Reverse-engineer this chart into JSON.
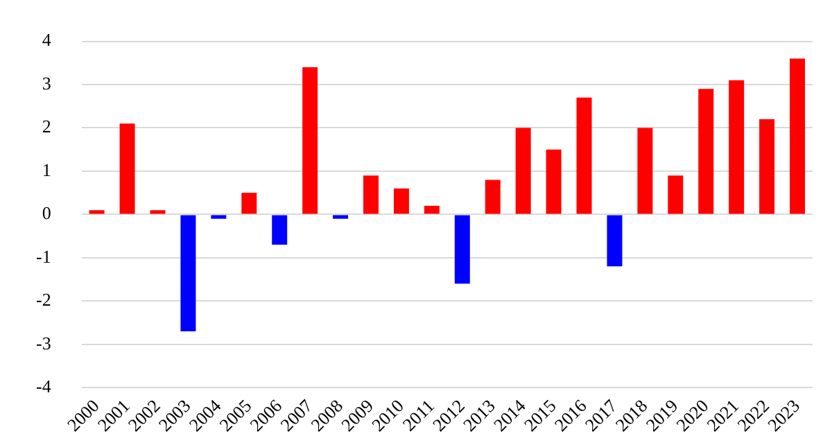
{
  "chart_data": {
    "type": "bar",
    "categories": [
      "2000",
      "2001",
      "2002",
      "2003",
      "2004",
      "2005",
      "2006",
      "2007",
      "2008",
      "2009",
      "2010",
      "2011",
      "2012",
      "2013",
      "2014",
      "2015",
      "2016",
      "2017",
      "2018",
      "2019",
      "2020",
      "2021",
      "2022",
      "2023"
    ],
    "values": [
      0.1,
      2.1,
      0.1,
      -2.7,
      -0.1,
      0.5,
      -0.7,
      3.4,
      -0.1,
      0.9,
      0.6,
      0.2,
      -1.6,
      0.8,
      2.0,
      1.5,
      2.7,
      -1.2,
      2.0,
      0.9,
      2.9,
      3.1,
      2.2,
      3.6
    ],
    "colors": [
      "#ff0000",
      "#ff0000",
      "#ff0000",
      "#0000ff",
      "#0000ff",
      "#ff0000",
      "#0000ff",
      "#ff0000",
      "#0000ff",
      "#ff0000",
      "#ff0000",
      "#ff0000",
      "#0000ff",
      "#ff0000",
      "#ff0000",
      "#ff0000",
      "#ff0000",
      "#0000ff",
      "#ff0000",
      "#ff0000",
      "#ff0000",
      "#ff0000",
      "#ff0000",
      "#ff0000"
    ],
    "ylim": [
      -4,
      4
    ],
    "yticks": [
      -4,
      -3,
      -2,
      -1,
      0,
      1,
      2,
      3,
      4
    ],
    "grid": "y"
  }
}
